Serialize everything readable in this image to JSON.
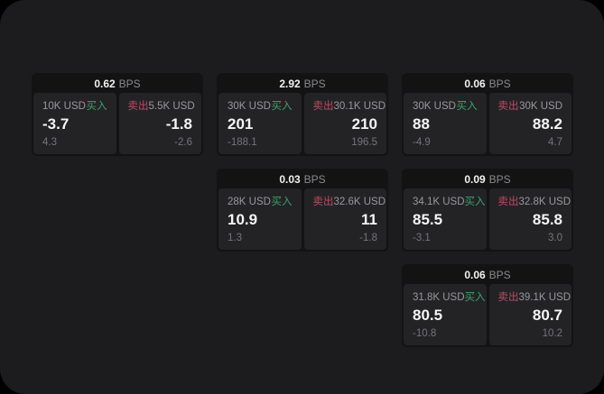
{
  "labels": {
    "bps_unit": "BPS",
    "buy": "买入",
    "sell": "卖出"
  },
  "colors": {
    "background": "#000000",
    "panel_bg": "#1c1c1e",
    "card_bg": "#131314",
    "tile_bg": "#232326",
    "buy_green": "#3da268",
    "sell_red": "#c04a63",
    "value_white": "#f5f5f5",
    "muted_gray": "#8b8b8f"
  },
  "cards": [
    {
      "bps": "0.62",
      "buy": {
        "amount": "10K USD",
        "price": "-3.7",
        "delta": "4.3"
      },
      "sell": {
        "amount": "5.5K USD",
        "price": "-1.8",
        "delta": "-2.6"
      }
    },
    {
      "bps": "2.92",
      "buy": {
        "amount": "30K USD",
        "price": "201",
        "delta": "-188.1"
      },
      "sell": {
        "amount": "30.1K USD",
        "price": "210",
        "delta": "196.5"
      }
    },
    {
      "bps": "0.06",
      "buy": {
        "amount": "30K USD",
        "price": "88",
        "delta": "-4.9"
      },
      "sell": {
        "amount": "30K USD",
        "price": "88.2",
        "delta": "4.7"
      }
    },
    {
      "bps": "0.03",
      "buy": {
        "amount": "28K USD",
        "price": "10.9",
        "delta": "1.3"
      },
      "sell": {
        "amount": "32.6K USD",
        "price": "11",
        "delta": "-1.8"
      }
    },
    {
      "bps": "0.09",
      "buy": {
        "amount": "34.1K USD",
        "price": "85.5",
        "delta": "-3.1"
      },
      "sell": {
        "amount": "32.8K USD",
        "price": "85.8",
        "delta": "3.0"
      }
    },
    {
      "bps": "0.06",
      "buy": {
        "amount": "31.8K USD",
        "price": "80.5",
        "delta": "-10.8"
      },
      "sell": {
        "amount": "39.1K USD",
        "price": "80.7",
        "delta": "10.2"
      }
    }
  ]
}
